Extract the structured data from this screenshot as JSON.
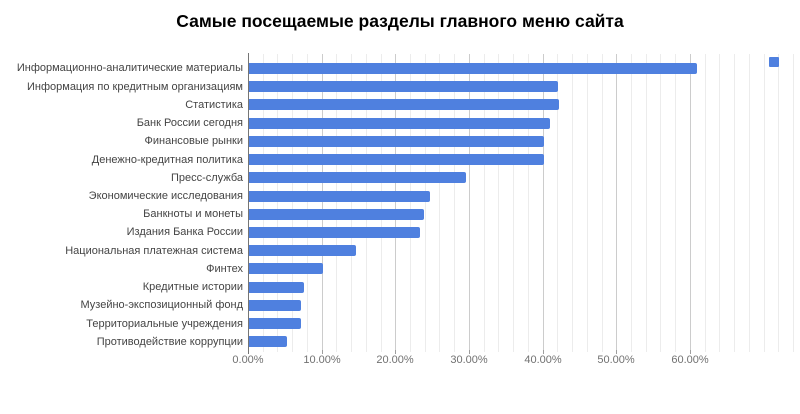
{
  "chart_data": {
    "type": "bar",
    "orientation": "horizontal",
    "title": "Самые посещаемые разделы главного меню сайта",
    "categories": [
      "Информационно-аналитические материалы",
      "Информация по кредитным организациям",
      "Статистика",
      "Банк России сегодня",
      "Финансовые рынки",
      "Денежно-кредитная политика",
      "Пресс-служба",
      "Экономические исследования",
      "Банкноты и монеты",
      "Издания Банка России",
      "Национальная платежная система",
      "Финтех",
      "Кредитные истории",
      "Музейно-экспозиционный фонд",
      "Территориальные учреждения",
      "Противодействие коррупции"
    ],
    "values": [
      60.8,
      42.0,
      42.1,
      40.9,
      40.1,
      40.0,
      29.5,
      24.6,
      23.7,
      23.2,
      14.5,
      10.0,
      7.5,
      7.0,
      7.0,
      5.2
    ],
    "value_unit": "%",
    "xlabel": "",
    "ylabel": "",
    "x_ticks": [
      {
        "value": 0,
        "label": "0.00%"
      },
      {
        "value": 10,
        "label": "10.00%"
      },
      {
        "value": 20,
        "label": "20.00%"
      },
      {
        "value": 30,
        "label": "30.00%"
      },
      {
        "value": 40,
        "label": "40.00%"
      },
      {
        "value": 50,
        "label": "50.00%"
      },
      {
        "value": 60,
        "label": "60.00%"
      }
    ],
    "xlim": [
      0,
      74
    ],
    "minor_grid_step": 2,
    "grid": true,
    "legend_position": "top-right",
    "colors": {
      "bar": "#4F80DF",
      "legend_marker": "#4F80DF",
      "major_gridline": "#cccccc",
      "minor_gridline": "#ececec",
      "baseline": "#757575",
      "title_text": "#000000",
      "category_label": "#444444",
      "tick_label": "#717171",
      "background": "#ffffff"
    }
  }
}
